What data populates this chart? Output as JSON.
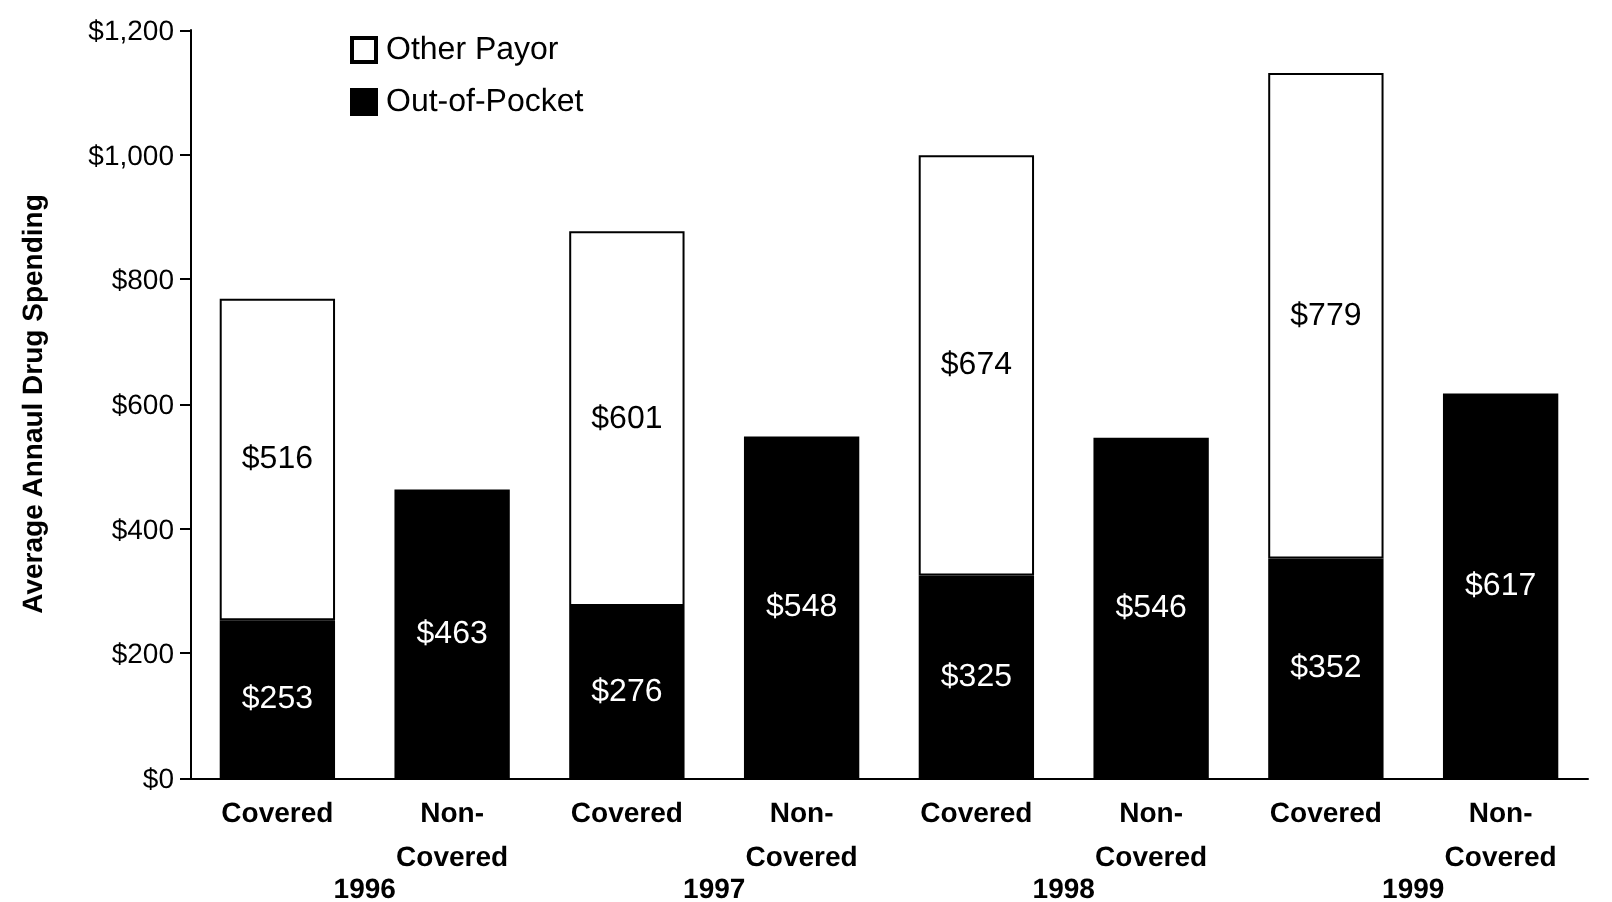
{
  "chart_data": {
    "type": "bar",
    "ylabel": "Average Annaul Drug Spending",
    "categories": [
      "Covered",
      "Non-Covered",
      "Covered",
      "Non-Covered",
      "Covered",
      "Non-Covered",
      "Covered",
      "Non-Covered"
    ],
    "annotations": [
      "1996",
      "1997",
      "1998",
      "1999"
    ],
    "stacked": true,
    "series": [
      {
        "name": "Out-of-Pocket",
        "color": "#000000",
        "values": [
          253,
          463,
          276,
          548,
          325,
          546,
          352,
          617
        ],
        "value_labels": [
          "$253",
          "$463",
          "$276",
          "$548",
          "$325",
          "$546",
          "$352",
          "$617"
        ]
      },
      {
        "name": "Other Payor",
        "color": "#ffffff",
        "values": [
          516,
          null,
          601,
          null,
          674,
          null,
          779,
          null
        ],
        "value_labels": [
          "$516",
          null,
          "$601",
          null,
          "$674",
          null,
          "$779",
          null
        ]
      }
    ],
    "ylim": [
      0,
      1200
    ],
    "yticks": [
      {
        "value": 0,
        "label": "$0"
      },
      {
        "value": 200,
        "label": "$200"
      },
      {
        "value": 400,
        "label": "$400"
      },
      {
        "value": 600,
        "label": "$600"
      },
      {
        "value": 800,
        "label": "$800"
      },
      {
        "value": 1000,
        "label": "$1,000"
      },
      {
        "value": 1200,
        "label": "$1,200"
      }
    ],
    "grid": false,
    "legend": "top left"
  }
}
